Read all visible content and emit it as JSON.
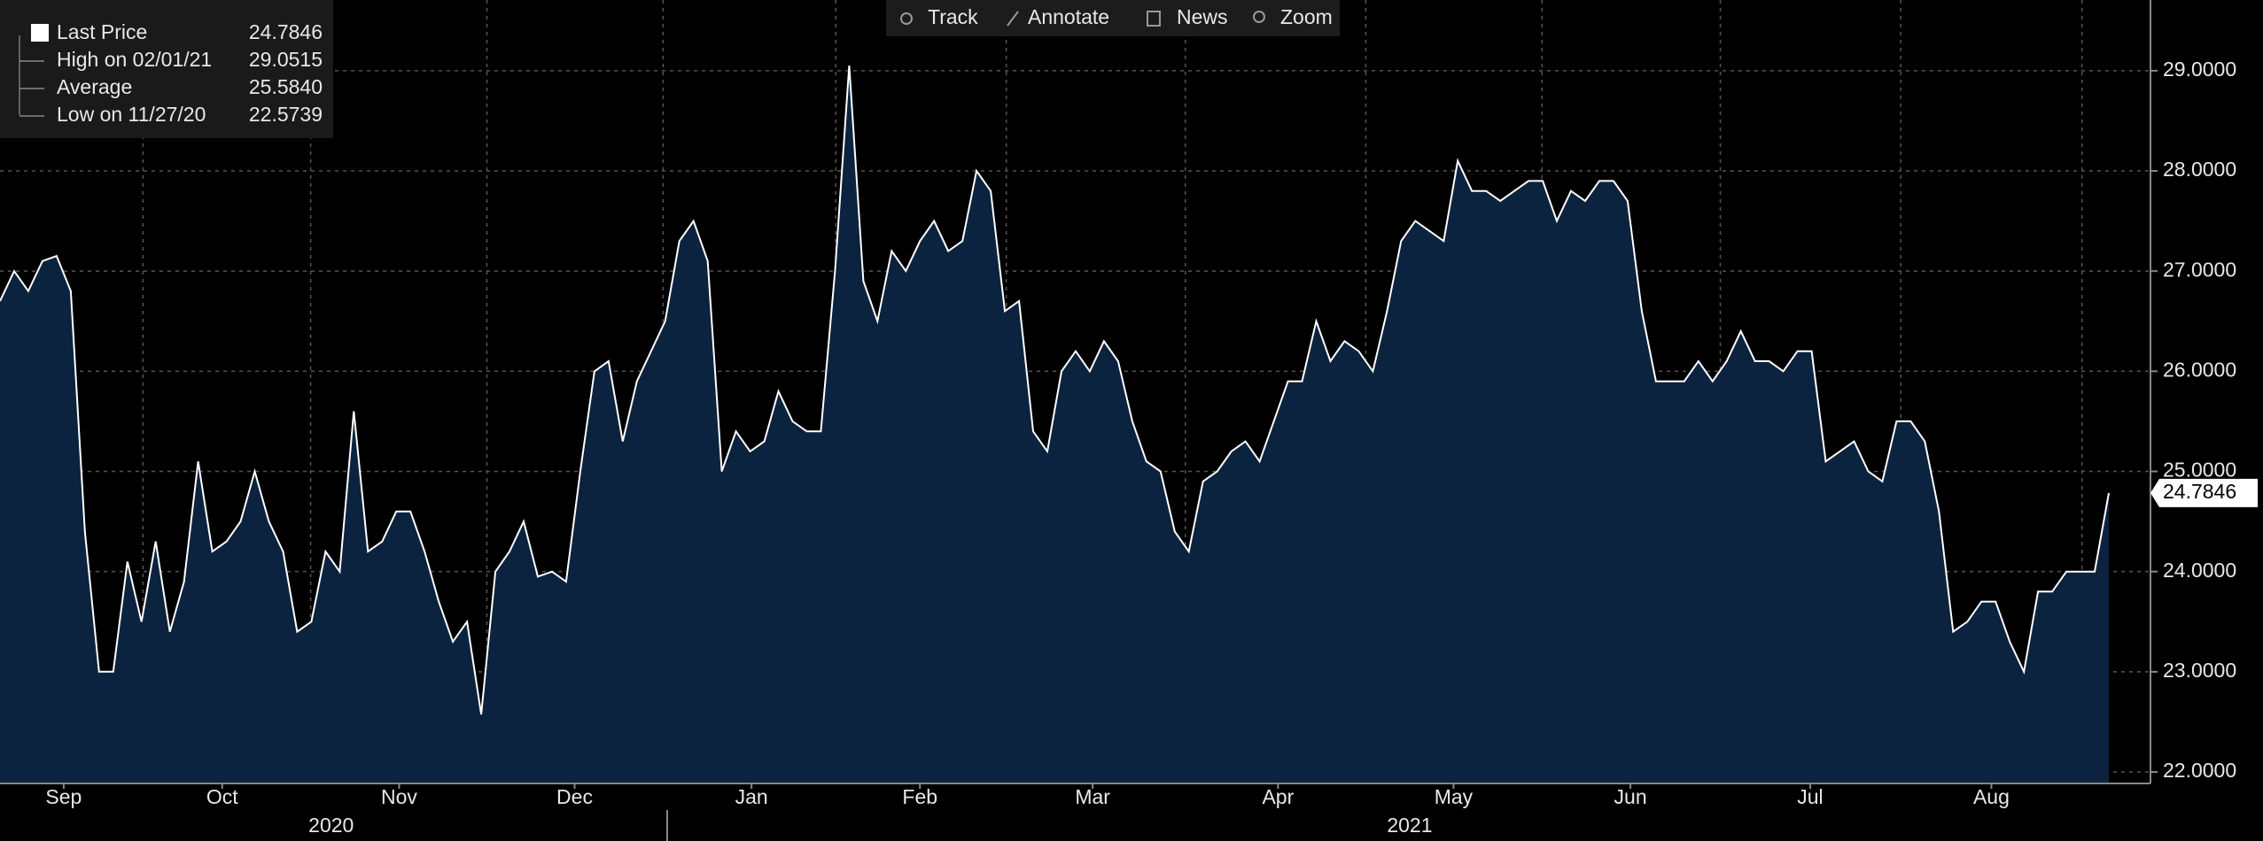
{
  "chart_data": {
    "type": "area",
    "series": [
      {
        "name": "Last Price",
        "color": "#ffffff",
        "fill_color": "#0c2340",
        "values": [
          26.7,
          27.0,
          26.8,
          27.1,
          27.15,
          26.8,
          24.4,
          23.0,
          23.0,
          24.1,
          23.5,
          24.3,
          23.4,
          23.9,
          25.1,
          24.2,
          24.3,
          24.5,
          25.0,
          24.5,
          24.2,
          23.4,
          23.5,
          24.2,
          24.0,
          25.6,
          24.2,
          24.3,
          24.6,
          24.6,
          24.2,
          23.7,
          23.3,
          23.5,
          22.5739,
          24.0,
          24.2,
          24.5,
          23.95,
          24.0,
          23.9,
          25.0,
          26.0,
          26.1,
          25.3,
          25.9,
          26.2,
          26.5,
          27.3,
          27.5,
          27.1,
          25.0,
          25.4,
          25.2,
          25.3,
          25.8,
          25.5,
          25.4,
          25.4,
          27.0,
          29.0515,
          26.9,
          26.5,
          27.2,
          27.0,
          27.3,
          27.5,
          27.2,
          27.3,
          28.0,
          27.8,
          26.6,
          26.7,
          25.4,
          25.2,
          26.0,
          26.2,
          26.0,
          26.3,
          26.1,
          25.5,
          25.1,
          25.0,
          24.4,
          24.2,
          24.9,
          25.0,
          25.2,
          25.3,
          25.1,
          25.5,
          25.9,
          25.9,
          26.5,
          26.1,
          26.3,
          26.2,
          26.0,
          26.6,
          27.3,
          27.5,
          27.4,
          27.3,
          28.1,
          27.8,
          27.8,
          27.7,
          27.8,
          27.9,
          27.9,
          27.5,
          27.8,
          27.7,
          27.9,
          27.9,
          27.7,
          26.6,
          25.9,
          25.9,
          25.9,
          26.1,
          25.9,
          26.1,
          26.4,
          26.1,
          26.1,
          26.0,
          26.2,
          26.2,
          25.1,
          25.2,
          25.3,
          25.0,
          24.9,
          25.5,
          25.5,
          25.3,
          24.6,
          23.4,
          23.5,
          23.7,
          23.7,
          23.3,
          23.0,
          23.8,
          23.8,
          24.0,
          24.0,
          24.0,
          24.7846
        ]
      }
    ],
    "legend_entries": [
      {
        "label": "Last Price",
        "value": "24.7846"
      },
      {
        "label": "High on 02/01/21",
        "value": "29.0515"
      },
      {
        "label": "Average",
        "value": "25.5840"
      },
      {
        "label": "Low on 11/27/20",
        "value": "22.5739"
      }
    ],
    "xlim": [
      0,
      149
    ],
    "xticks": [
      {
        "value": 4.5,
        "label": "Sep"
      },
      {
        "value": 15.7,
        "label": "Oct"
      },
      {
        "value": 28.2,
        "label": "Nov"
      },
      {
        "value": 40.6,
        "label": "Dec"
      },
      {
        "value": 53.1,
        "label": "Jan"
      },
      {
        "value": 65,
        "label": "Feb"
      },
      {
        "value": 77.2,
        "label": "Mar"
      },
      {
        "value": 90.3,
        "label": "Apr"
      },
      {
        "value": 102.7,
        "label": "May"
      },
      {
        "value": 115.2,
        "label": "Jun"
      },
      {
        "value": 127.9,
        "label": "Jul"
      },
      {
        "value": 140.7,
        "label": "Aug"
      }
    ],
    "year_labels": [
      {
        "value": 23.4,
        "label": "2020"
      },
      {
        "value": 99.6,
        "label": "2021"
      }
    ],
    "ylim": [
      21.885,
      29.706
    ],
    "yticks": [
      {
        "value": 22,
        "label": "22.0000"
      },
      {
        "value": 23,
        "label": "23.0000"
      },
      {
        "value": 24,
        "label": "24.0000"
      },
      {
        "value": 25,
        "label": "25.0000"
      },
      {
        "value": 26,
        "label": "26.0000"
      },
      {
        "value": 27,
        "label": "27.0000"
      },
      {
        "value": 28,
        "label": "28.0000"
      },
      {
        "value": 29,
        "label": "29.0000"
      }
    ],
    "grid": true
  },
  "toolbar": [
    "Track",
    "Annotate",
    "News",
    "Zoom"
  ]
}
